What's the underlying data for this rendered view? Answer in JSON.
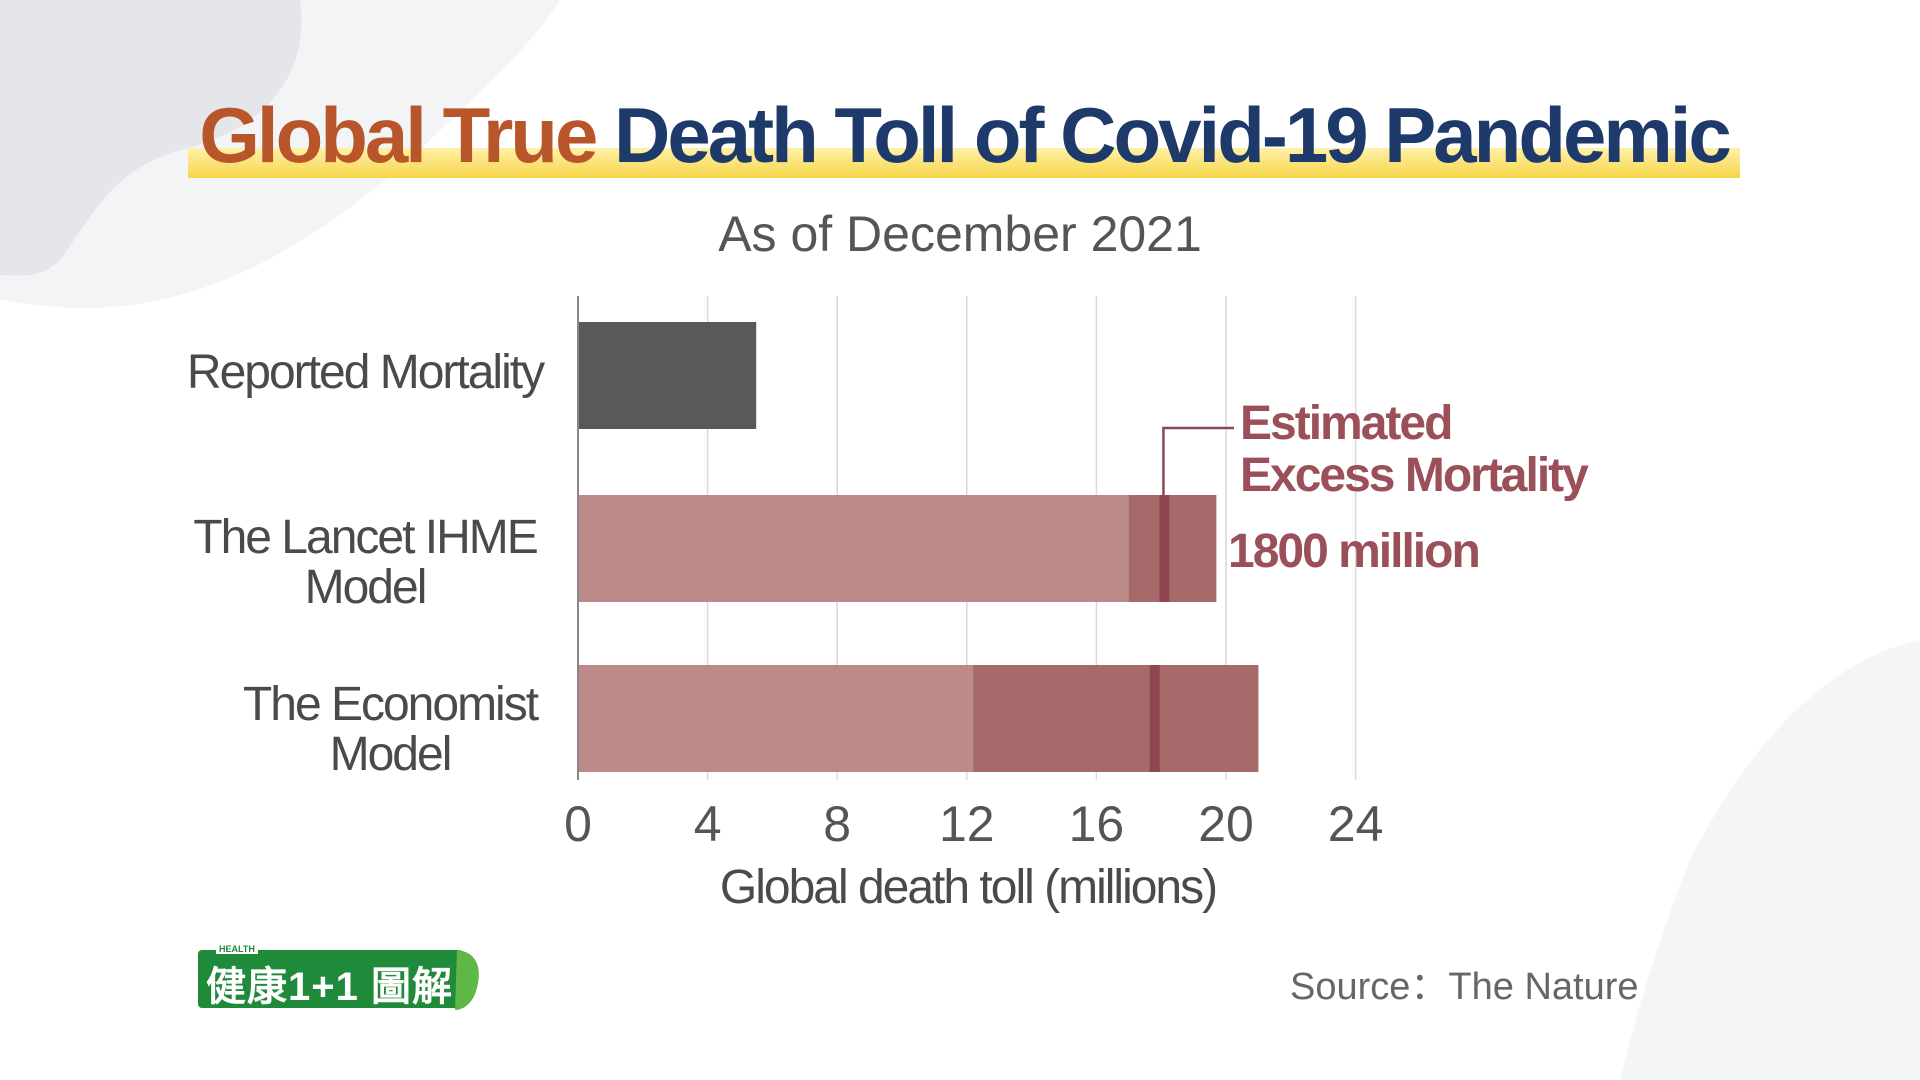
{
  "title": {
    "part1": "Global True",
    "part2": "Death Toll of Covid-19 Pandemic"
  },
  "subtitle": "As of December 2021",
  "colors": {
    "title_orange": "#b8552a",
    "title_navy": "#1d3a6b",
    "reported_bar": "#5a5858",
    "model_bar": "#bc8a88",
    "model_range": "#a66a6b",
    "estimate_line": "#8f4650",
    "annotation": "#9b4f58",
    "logo_green": "#1f8a3a"
  },
  "chart_data": {
    "type": "bar",
    "orientation": "horizontal",
    "categories": [
      "Reported Mortality",
      "The Lancet IHME Model",
      "The Economist Model"
    ],
    "category_lines": [
      [
        "Reported Mortality"
      ],
      [
        "The Lancet IHME",
        "Model"
      ],
      [
        "The Economist",
        "Model"
      ]
    ],
    "values": [
      5.5,
      19.7,
      21.0
    ],
    "range_low": [
      null,
      17.0,
      12.2
    ],
    "point_estimate": [
      null,
      18.1,
      17.8
    ],
    "xlabel": "Global death toll (millions)",
    "xlim": [
      0,
      24
    ],
    "xticks": [
      0,
      4,
      8,
      12,
      16,
      20,
      24
    ],
    "grid": "vertical",
    "annotation": {
      "lines": [
        "Estimated",
        "Excess Mortality"
      ],
      "value_text": "1800 million"
    }
  },
  "source": "Source：The Nature",
  "logo": {
    "small_text": "HEALTH",
    "text": "健康1+1 圖解"
  }
}
